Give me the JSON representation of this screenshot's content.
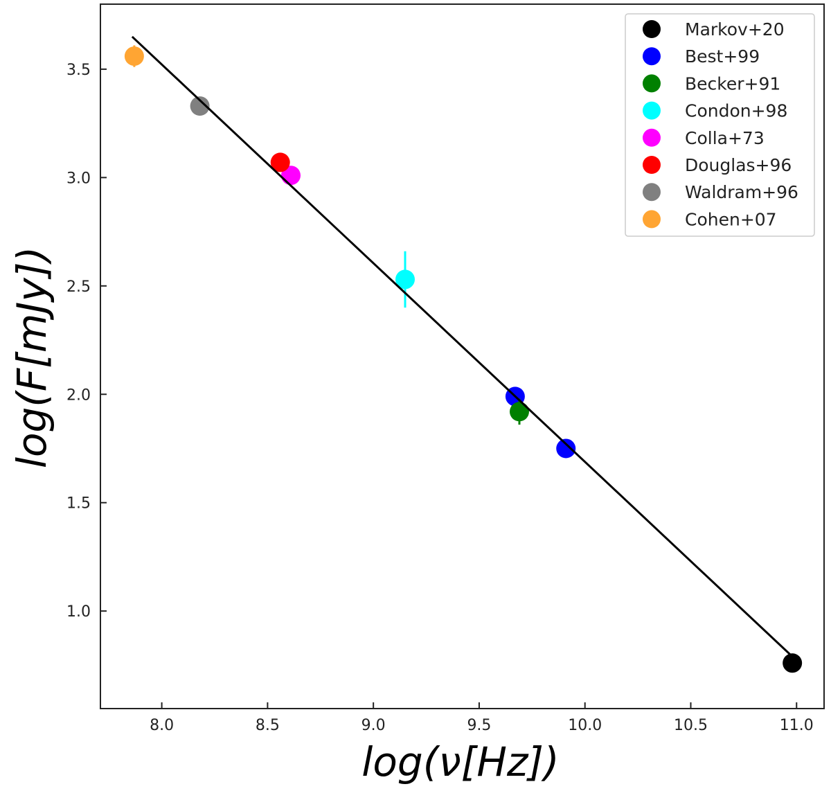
{
  "chart_data": {
    "type": "scatter",
    "xlabel": "log(ν[Hz])",
    "ylabel": "log(F[mJy])",
    "xlim": [
      7.71,
      11.13
    ],
    "ylim": [
      0.55,
      3.8
    ],
    "xticks": [
      {
        "value": 8.0,
        "label": "8.0"
      },
      {
        "value": 8.5,
        "label": "8.5"
      },
      {
        "value": 9.0,
        "label": "9.0"
      },
      {
        "value": 9.5,
        "label": "9.5"
      },
      {
        "value": 10.0,
        "label": "10.0"
      },
      {
        "value": 10.5,
        "label": "10.5"
      },
      {
        "value": 11.0,
        "label": "11.0"
      }
    ],
    "yticks": [
      {
        "value": 1.0,
        "label": "1.0"
      },
      {
        "value": 1.5,
        "label": "1.5"
      },
      {
        "value": 2.0,
        "label": "2.0"
      },
      {
        "value": 2.5,
        "label": "2.5"
      },
      {
        "value": 3.0,
        "label": "3.0"
      },
      {
        "value": 3.5,
        "label": "3.5"
      }
    ],
    "grid": false,
    "legend_position": "top-right",
    "series": [
      {
        "name": "Markov+20",
        "color": "#000000",
        "points": [
          {
            "x": 10.98,
            "y": 0.76
          }
        ]
      },
      {
        "name": "Best+99",
        "color": "#0000ff",
        "points": [
          {
            "x": 9.67,
            "y": 1.99
          },
          {
            "x": 9.91,
            "y": 1.75
          }
        ]
      },
      {
        "name": "Becker+91",
        "color": "#008000",
        "points": [
          {
            "x": 9.69,
            "y": 1.92,
            "yerr": 0.06
          }
        ]
      },
      {
        "name": "Condon+98",
        "color": "#00ffff",
        "points": [
          {
            "x": 9.15,
            "y": 2.53,
            "yerr": 0.13
          }
        ]
      },
      {
        "name": "Colla+73",
        "color": "#ff00ff",
        "points": [
          {
            "x": 8.61,
            "y": 3.01
          }
        ]
      },
      {
        "name": "Douglas+96",
        "color": "#ff0000",
        "points": [
          {
            "x": 8.56,
            "y": 3.07
          }
        ]
      },
      {
        "name": "Waldram+96",
        "color": "#808080",
        "points": [
          {
            "x": 8.18,
            "y": 3.33
          }
        ]
      },
      {
        "name": "Cohen+07",
        "color": "#ffa533",
        "points": [
          {
            "x": 7.87,
            "y": 3.56,
            "yerr": 0.05
          }
        ]
      }
    ],
    "fit_line": {
      "color": "#000000",
      "x": [
        7.86,
        10.98
      ],
      "y": [
        3.65,
        0.79
      ]
    }
  }
}
